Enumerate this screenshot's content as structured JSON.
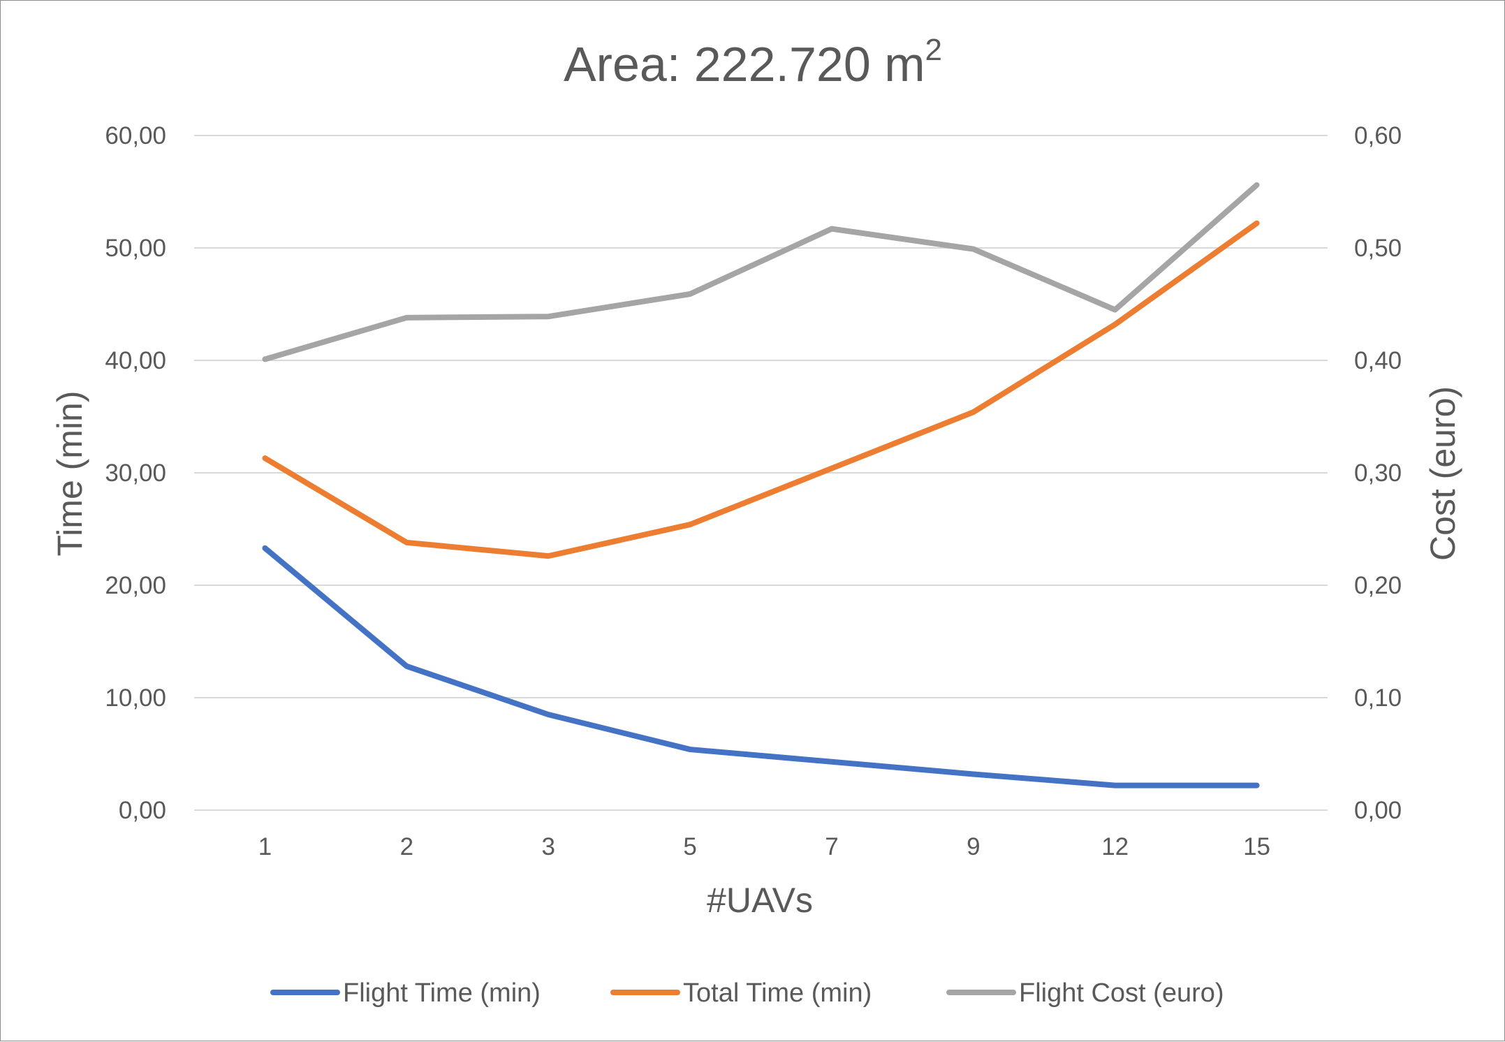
{
  "chart_data": {
    "type": "line",
    "title": "Area: 222.720 m",
    "title_superscript": "2",
    "xlabel": "#UAVs",
    "ylabel_left": "Time (min)",
    "ylabel_right": "Cost (euro)",
    "categories": [
      "1",
      "2",
      "3",
      "5",
      "7",
      "9",
      "12",
      "15"
    ],
    "y_left": {
      "min": 0,
      "max": 60,
      "step": 10,
      "tick_labels": [
        "0,00",
        "10,00",
        "20,00",
        "30,00",
        "40,00",
        "50,00",
        "60,00"
      ]
    },
    "y_right": {
      "min": 0,
      "max": 0.6,
      "step": 0.1,
      "tick_labels": [
        "0,00",
        "0,10",
        "0,20",
        "0,30",
        "0,40",
        "0,50",
        "0,60"
      ]
    },
    "grid": true,
    "legend_position": "bottom",
    "series": [
      {
        "name": "Flight Time (min)",
        "axis": "left",
        "color": "#4472C4",
        "values": [
          23.3,
          12.8,
          8.5,
          5.4,
          4.3,
          3.2,
          2.2,
          2.2
        ]
      },
      {
        "name": "Total Time (min)",
        "axis": "left",
        "color": "#ED7D31",
        "values": [
          31.3,
          23.8,
          22.6,
          25.4,
          30.4,
          35.4,
          43.2,
          52.2
        ]
      },
      {
        "name": "Flight Cost (euro)",
        "axis": "right",
        "color": "#A5A5A5",
        "values": [
          0.401,
          0.438,
          0.439,
          0.459,
          0.517,
          0.499,
          0.445,
          0.556
        ]
      }
    ]
  }
}
